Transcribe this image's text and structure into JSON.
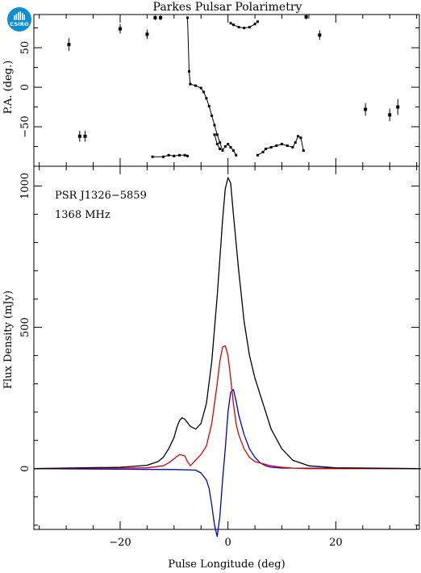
{
  "logo": {
    "text": "CSIRO",
    "color": "#0a8fd6"
  },
  "title": "Parkes Pulsar Polarimetry",
  "annotations": {
    "source": "PSR J1326−5859",
    "frequency": "1368 MHz"
  },
  "chart_data": [
    {
      "type": "scatter",
      "panel": "position-angle",
      "ylabel": "P.A. (deg.)",
      "xlim": [
        -36,
        35.5
      ],
      "ylim": [
        -100,
        92
      ],
      "yticks": [
        -50,
        0,
        50
      ],
      "ytick_labels": [
        "−50",
        "0",
        "50"
      ],
      "error_points": [
        {
          "x": -29.5,
          "y": 54,
          "err": 8
        },
        {
          "x": -27.5,
          "y": -62,
          "err": 7
        },
        {
          "x": -26.5,
          "y": -62,
          "err": 7
        },
        {
          "x": -20,
          "y": 74,
          "err": 6
        },
        {
          "x": -15,
          "y": 67,
          "err": 6
        },
        {
          "x": -13.5,
          "y": 88,
          "err": 3
        },
        {
          "x": -12.5,
          "y": 88,
          "err": 3
        },
        {
          "x": 14.5,
          "y": 89,
          "err": 3
        },
        {
          "x": 17,
          "y": 66,
          "err": 6
        },
        {
          "x": 25.5,
          "y": -28,
          "err": 8
        },
        {
          "x": 30,
          "y": -35,
          "err": 8
        },
        {
          "x": 31.5,
          "y": -25,
          "err": 10
        }
      ],
      "line_segments": [
        [
          [
            -14,
            -88
          ],
          [
            -12,
            -88
          ],
          [
            -11,
            -86
          ],
          [
            -10,
            -87
          ],
          [
            -9,
            -86
          ],
          [
            -8,
            -86
          ],
          [
            -7.5,
            -87
          ]
        ],
        [
          [
            -7.5,
            88
          ],
          [
            -7.2,
            20
          ],
          [
            -7,
            4
          ],
          [
            -6,
            2
          ],
          [
            -5,
            -1
          ],
          [
            -4.5,
            -6
          ],
          [
            -4,
            -14
          ],
          [
            -3.5,
            -24
          ],
          [
            -3,
            -36
          ],
          [
            -2.5,
            -48
          ],
          [
            -2,
            -60
          ],
          [
            -1.5,
            -70
          ],
          [
            -1,
            -80
          ],
          [
            -0.5,
            -75
          ],
          [
            0,
            -72
          ],
          [
            0.5,
            -76
          ],
          [
            1,
            -80
          ],
          [
            1.5,
            -86
          ]
        ],
        [
          [
            -2.5,
            -60
          ],
          [
            -2,
            -72
          ],
          [
            -1.5,
            -78
          ]
        ],
        [
          [
            0.5,
            81
          ],
          [
            1,
            79
          ],
          [
            2,
            76
          ],
          [
            3,
            75
          ],
          [
            4,
            76
          ],
          [
            5,
            80
          ],
          [
            5.5,
            83
          ]
        ],
        [
          [
            5.5,
            -86
          ],
          [
            6.5,
            -82
          ],
          [
            7,
            -78
          ],
          [
            8,
            -76
          ],
          [
            9,
            -74
          ],
          [
            10,
            -72
          ],
          [
            11,
            -74
          ],
          [
            12,
            -76
          ],
          [
            12.5,
            -70
          ],
          [
            13,
            -62
          ],
          [
            13.5,
            -64
          ],
          [
            14,
            -80
          ]
        ]
      ]
    },
    {
      "type": "line",
      "panel": "profile",
      "ylabel": "Flux Density (mJy)",
      "xlabel": "Pulse Longitude (deg)",
      "xlim": [
        -36,
        35.5
      ],
      "ylim": [
        -215,
        1070
      ],
      "xticks": [
        -20,
        0,
        20
      ],
      "xtick_labels": [
        "−20",
        "0",
        "20"
      ],
      "yticks": [
        0,
        500,
        1000
      ],
      "ytick_labels": [
        "0",
        "500",
        "1000"
      ],
      "series": [
        {
          "color": "#000000",
          "x": [
            -36,
            -20,
            -15,
            -13,
            -12,
            -11,
            -10,
            -9.5,
            -9,
            -8.5,
            -8,
            -7,
            -6,
            -5,
            -4,
            -3,
            -2,
            -1,
            -0.5,
            0,
            0.5,
            1,
            2,
            3,
            4,
            5,
            6,
            7,
            8,
            10,
            12,
            15,
            20,
            36
          ],
          "y": [
            0,
            5,
            12,
            25,
            40,
            70,
            110,
            145,
            170,
            180,
            175,
            150,
            140,
            160,
            230,
            380,
            610,
            880,
            990,
            1030,
            1010,
            900,
            700,
            520,
            400,
            320,
            260,
            200,
            140,
            70,
            30,
            10,
            3,
            0
          ]
        },
        {
          "color": "#e00000",
          "x": [
            -36,
            -15,
            -12,
            -11,
            -10,
            -9,
            -8,
            -7.5,
            -7,
            -6,
            -5,
            -4,
            -3,
            -2,
            -1.5,
            -1,
            -0.5,
            0,
            0.5,
            1,
            1.5,
            2,
            3,
            4,
            5,
            6,
            7,
            8,
            10,
            12,
            15,
            36
          ],
          "y": [
            0,
            3,
            10,
            20,
            35,
            50,
            45,
            25,
            10,
            30,
            50,
            80,
            160,
            300,
            380,
            430,
            435,
            400,
            320,
            230,
            160,
            120,
            70,
            40,
            25,
            20,
            15,
            10,
            5,
            2,
            0,
            0
          ]
        },
        {
          "color": "#0000cc",
          "x": [
            -36,
            -10,
            -6,
            -5,
            -4,
            -3.5,
            -3,
            -2.5,
            -2,
            -1.5,
            -1,
            -0.5,
            0,
            0.5,
            1,
            1.5,
            2,
            3,
            4,
            5,
            6,
            7,
            8,
            10,
            36
          ],
          "y": [
            0,
            -3,
            -5,
            -15,
            -40,
            -70,
            -130,
            -200,
            -240,
            -170,
            -40,
            70,
            200,
            270,
            280,
            240,
            190,
            120,
            70,
            40,
            20,
            10,
            5,
            2,
            0
          ]
        }
      ]
    }
  ]
}
